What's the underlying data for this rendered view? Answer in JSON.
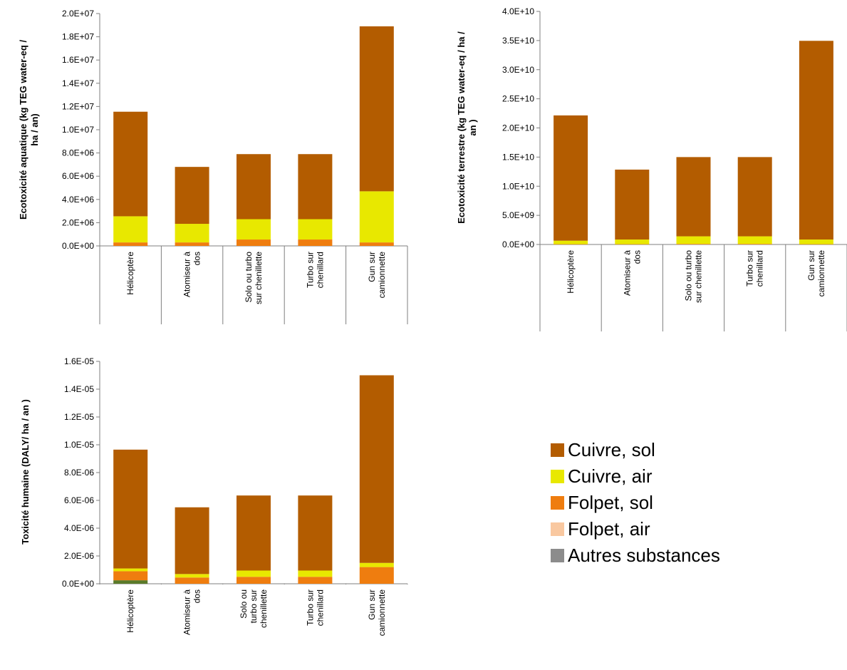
{
  "colors": {
    "cuivre_sol": "#b35c00",
    "cuivre_air": "#e8e800",
    "folpet_sol": "#ef7d0f",
    "folpet_air": "#f9c8a0",
    "autres": "#8c8c8c",
    "autres_dark": "#5a7a2a",
    "axis": "#7f7f7f"
  },
  "legend": [
    {
      "key": "cuivre_sol",
      "label": "Cuivre, sol"
    },
    {
      "key": "cuivre_air",
      "label": "Cuivre, air"
    },
    {
      "key": "folpet_sol",
      "label": "Folpet, sol"
    },
    {
      "key": "folpet_air",
      "label": "Folpet, air"
    },
    {
      "key": "autres",
      "label": "Autres substances"
    }
  ],
  "chart_data": [
    {
      "type": "bar",
      "stacked": true,
      "ylabel_lines": [
        "Ecotoxicité aquatique (kg TEG water-eq /",
        "ha / an)"
      ],
      "ylim": [
        0,
        20000000
      ],
      "yticks": [
        "0.0E+00",
        "2.0E+06",
        "4.0E+06",
        "6.0E+06",
        "8.0E+06",
        "1.0E+07",
        "1.2E+07",
        "1.4E+07",
        "1.6E+07",
        "1.8E+07",
        "2.0E+07"
      ],
      "categories": [
        [
          "Hélicoptère"
        ],
        [
          "Atomiseur à",
          "dos"
        ],
        [
          "Solo ou turbo",
          "sur chenillette"
        ],
        [
          "Turbo sur",
          "chenillard"
        ],
        [
          "Gun sur",
          "camionnette"
        ]
      ],
      "series": [
        {
          "key": "autres",
          "values": [
            0,
            0,
            0,
            0,
            0
          ]
        },
        {
          "key": "folpet_air",
          "values": [
            0,
            0,
            0,
            0,
            0
          ]
        },
        {
          "key": "folpet_sol",
          "values": [
            300000,
            300000,
            550000,
            550000,
            300000
          ]
        },
        {
          "key": "cuivre_air",
          "values": [
            2250000,
            1600000,
            1750000,
            1750000,
            4400000
          ]
        },
        {
          "key": "cuivre_sol",
          "values": [
            9000000,
            4900000,
            5600000,
            5600000,
            14200000
          ]
        }
      ]
    },
    {
      "type": "bar",
      "stacked": true,
      "ylabel_lines": [
        "Ecotoxicité terrestre (kg TEG water-eq / ha /",
        "an )"
      ],
      "ylim": [
        0,
        40000000000
      ],
      "yticks": [
        "0.0E+00",
        "5.0E+09",
        "1.0E+10",
        "1.5E+10",
        "2.0E+10",
        "2.5E+10",
        "3.0E+10",
        "3.5E+10",
        "4.0E+10"
      ],
      "categories": [
        [
          "Hélicoptère"
        ],
        [
          "Atomiseur à",
          "dos"
        ],
        [
          "Solo ou turbo",
          "sur chenillette"
        ],
        [
          "Turbo sur",
          "chenillard"
        ],
        [
          "Gun sur",
          "camionnette"
        ]
      ],
      "series": [
        {
          "key": "autres",
          "values": [
            0,
            0,
            0,
            0,
            0
          ]
        },
        {
          "key": "folpet_air",
          "values": [
            0,
            0,
            0,
            0,
            0
          ]
        },
        {
          "key": "folpet_sol",
          "values": [
            50000000,
            50000000,
            100000000,
            100000000,
            50000000
          ]
        },
        {
          "key": "cuivre_air",
          "values": [
            600000000,
            800000000,
            1300000000,
            1300000000,
            800000000
          ]
        },
        {
          "key": "cuivre_sol",
          "values": [
            21500000000,
            12000000000,
            13600000000,
            13600000000,
            34100000000
          ]
        }
      ]
    },
    {
      "type": "bar",
      "stacked": true,
      "ylabel_lines": [
        "Toxicité humaine (DALY/ ha / an )"
      ],
      "ylim": [
        0,
        1.6e-05
      ],
      "yticks": [
        "0.0E+00",
        "2.0E-06",
        "4.0E-06",
        "6.0E-06",
        "8.0E-06",
        "1.0E-05",
        "1.2E-05",
        "1.4E-05",
        "1.6E-05"
      ],
      "categories": [
        [
          "Hélicoptère"
        ],
        [
          "Atomiseur à",
          "dos"
        ],
        [
          "Solo ou",
          "turbo sur",
          "chenillette"
        ],
        [
          "Turbo sur",
          "chenillard"
        ],
        [
          "Gun sur",
          "camionnette"
        ]
      ],
      "series": [
        {
          "key": "autres",
          "values": [
            2.5e-07,
            0,
            0,
            0,
            0
          ]
        },
        {
          "key": "folpet_air",
          "values": [
            0,
            0,
            0,
            0,
            0
          ]
        },
        {
          "key": "folpet_sol",
          "values": [
            6.5e-07,
            4.5e-07,
            5e-07,
            5e-07,
            1.2e-06
          ]
        },
        {
          "key": "cuivre_air",
          "values": [
            2e-07,
            2.5e-07,
            4.5e-07,
            4.5e-07,
            3e-07
          ]
        },
        {
          "key": "cuivre_sol",
          "values": [
            8.55e-06,
            4.8e-06,
            5.4e-06,
            5.4e-06,
            1.35e-05
          ]
        }
      ]
    }
  ]
}
